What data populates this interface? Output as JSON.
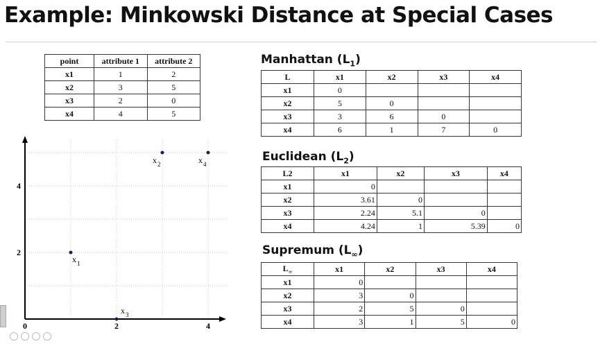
{
  "title": "Example: Minkowski Distance at Special Cases",
  "points_table": {
    "headers": [
      "point",
      "attribute 1",
      "attribute 2"
    ],
    "rows": [
      [
        "x1",
        "1",
        "2"
      ],
      [
        "x2",
        "3",
        "5"
      ],
      [
        "x3",
        "2",
        "0"
      ],
      [
        "x4",
        "4",
        "5"
      ]
    ]
  },
  "plot": {
    "x_ticks": [
      "0",
      "2",
      "4"
    ],
    "y_ticks": [
      "2",
      "4"
    ],
    "points": [
      {
        "label": "x",
        "sub": "1",
        "x": 1,
        "y": 2
      },
      {
        "label": "x",
        "sub": "2",
        "x": 3,
        "y": 5
      },
      {
        "label": "x",
        "sub": "3",
        "x": 2,
        "y": 0
      },
      {
        "label": "x",
        "sub": "4",
        "x": 4,
        "y": 5
      }
    ]
  },
  "manhattan": {
    "title": "Manhattan (L",
    "title_sub": "1",
    "title_end": ")",
    "corner": "L",
    "cols": [
      "x1",
      "x2",
      "x3",
      "x4"
    ],
    "rows": [
      {
        "label": "x1",
        "values": [
          "0",
          "",
          "",
          ""
        ]
      },
      {
        "label": "x2",
        "values": [
          "5",
          "0",
          "",
          ""
        ]
      },
      {
        "label": "x3",
        "values": [
          "3",
          "6",
          "0",
          ""
        ]
      },
      {
        "label": "x4",
        "values": [
          "6",
          "1",
          "7",
          "0"
        ]
      }
    ]
  },
  "euclidean": {
    "title": "Euclidean (L",
    "title_sub": "2",
    "title_end": ")",
    "corner": "L2",
    "cols": [
      "x1",
      "x2",
      "x3",
      "x4"
    ],
    "rows": [
      {
        "label": "x1",
        "values": [
          "0",
          "",
          "",
          ""
        ]
      },
      {
        "label": "x2",
        "values": [
          "3.61",
          "0",
          "",
          ""
        ]
      },
      {
        "label": "x3",
        "values": [
          "2.24",
          "5.1",
          "0",
          ""
        ]
      },
      {
        "label": "x4",
        "values": [
          "4.24",
          "1",
          "5.39",
          "0"
        ]
      }
    ]
  },
  "supremum": {
    "title": "Supremum (L",
    "title_sub": "∞",
    "title_end": ")",
    "corner": "L",
    "corner_sub": "∞",
    "cols": [
      "x1",
      "x2",
      "x3",
      "x4"
    ],
    "rows": [
      {
        "label": "x1",
        "values": [
          "0",
          "",
          "",
          ""
        ]
      },
      {
        "label": "x2",
        "values": [
          "3",
          "0",
          "",
          ""
        ]
      },
      {
        "label": "x3",
        "values": [
          "2",
          "5",
          "0",
          ""
        ]
      },
      {
        "label": "x4",
        "values": [
          "3",
          "1",
          "5",
          "0"
        ]
      }
    ]
  }
}
